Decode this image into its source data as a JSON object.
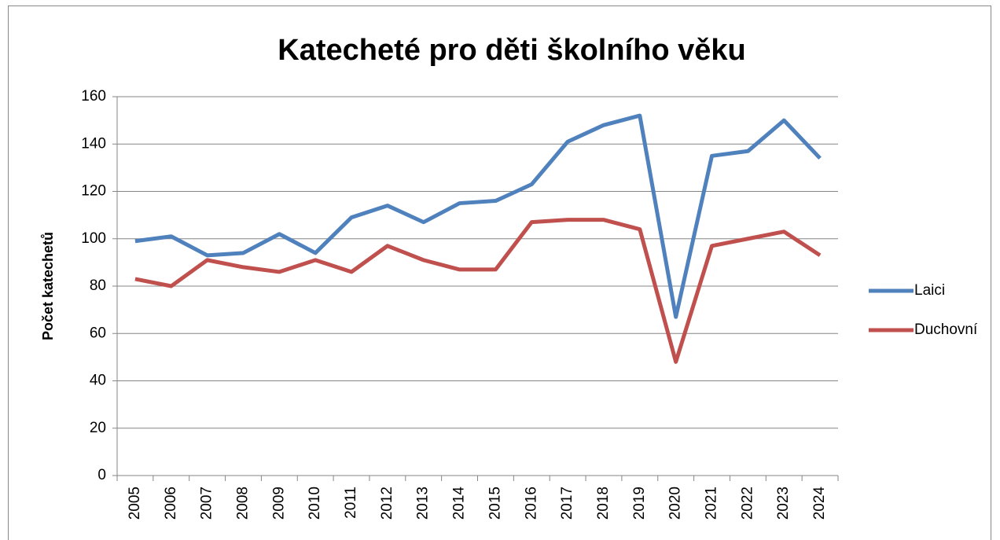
{
  "chart_data": {
    "type": "line",
    "title": "Katecheté pro děti školního věku",
    "y_label": "Počet katechetů",
    "categories": [
      "2005",
      "2006",
      "2007",
      "2008",
      "2009",
      "2010",
      "2011",
      "2012",
      "2013",
      "2014",
      "2015",
      "2016",
      "2017",
      "2018",
      "2019",
      "2020",
      "2021",
      "2022",
      "2023",
      "2024"
    ],
    "series": [
      {
        "name": "Laici",
        "color": "#4f81bd",
        "values": [
          99,
          101,
          93,
          94,
          102,
          94,
          109,
          114,
          107,
          115,
          116,
          123,
          141,
          148,
          152,
          67,
          135,
          137,
          150,
          134
        ]
      },
      {
        "name": "Duchovní",
        "color": "#c0504d",
        "values": [
          83,
          80,
          91,
          88,
          86,
          91,
          86,
          97,
          91,
          87,
          87,
          107,
          108,
          108,
          104,
          48,
          97,
          100,
          103,
          93
        ]
      }
    ],
    "ylim": [
      0,
      160
    ],
    "yticks": [
      0,
      20,
      40,
      60,
      80,
      100,
      120,
      140,
      160
    ],
    "grid": true,
    "legend": "right"
  }
}
